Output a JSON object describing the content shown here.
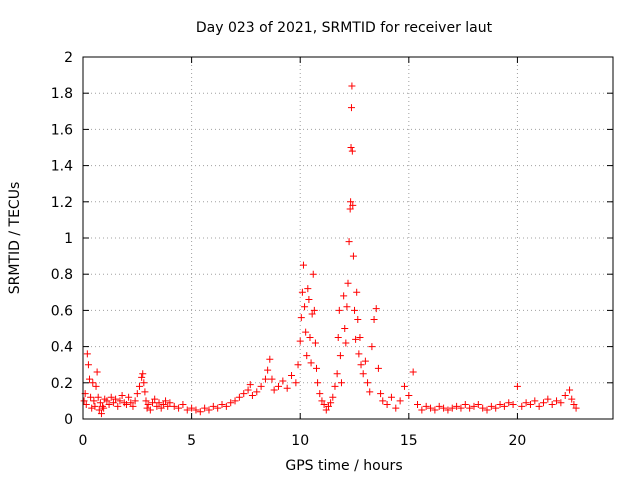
{
  "chart_data": {
    "type": "scatter",
    "title": "Day 023 of 2021, SRMTID for receiver laut",
    "xlabel": "GPS time / hours",
    "ylabel": "SRMTID / TECUs",
    "xlim": [
      0,
      24.4
    ],
    "ylim": [
      0,
      2
    ],
    "xticks": [
      "0",
      "5",
      "10",
      "15",
      "20"
    ],
    "yticks": [
      "0",
      "0.2",
      "0.4",
      "0.6",
      "0.8",
      "1",
      "1.2",
      "1.4",
      "1.6",
      "1.8",
      "2"
    ],
    "grid": true,
    "marker": "+",
    "color": "#ff0000",
    "series": [
      {
        "name": "SRMTID",
        "points": [
          [
            0.05,
            0.1
          ],
          [
            0.1,
            0.14
          ],
          [
            0.15,
            0.08
          ],
          [
            0.2,
            0.36
          ],
          [
            0.25,
            0.3
          ],
          [
            0.3,
            0.22
          ],
          [
            0.35,
            0.12
          ],
          [
            0.4,
            0.06
          ],
          [
            0.45,
            0.2
          ],
          [
            0.5,
            0.1
          ],
          [
            0.55,
            0.07
          ],
          [
            0.6,
            0.18
          ],
          [
            0.65,
            0.26
          ],
          [
            0.7,
            0.12
          ],
          [
            0.75,
            0.05
          ],
          [
            0.8,
            0.09
          ],
          [
            0.85,
            0.03
          ],
          [
            0.9,
            0.07
          ],
          [
            0.95,
            0.06
          ],
          [
            1.0,
            0.11
          ],
          [
            1.1,
            0.1
          ],
          [
            1.2,
            0.08
          ],
          [
            1.3,
            0.12
          ],
          [
            1.4,
            0.09
          ],
          [
            1.5,
            0.11
          ],
          [
            1.6,
            0.07
          ],
          [
            1.7,
            0.1
          ],
          [
            1.8,
            0.13
          ],
          [
            1.9,
            0.09
          ],
          [
            2.0,
            0.08
          ],
          [
            2.1,
            0.12
          ],
          [
            2.2,
            0.09
          ],
          [
            2.3,
            0.07
          ],
          [
            2.4,
            0.1
          ],
          [
            2.5,
            0.14
          ],
          [
            2.6,
            0.18
          ],
          [
            2.7,
            0.23
          ],
          [
            2.75,
            0.25
          ],
          [
            2.8,
            0.2
          ],
          [
            2.85,
            0.15
          ],
          [
            2.9,
            0.1
          ],
          [
            2.95,
            0.06
          ],
          [
            3.0,
            0.08
          ],
          [
            3.1,
            0.05
          ],
          [
            3.2,
            0.09
          ],
          [
            3.3,
            0.11
          ],
          [
            3.4,
            0.07
          ],
          [
            3.5,
            0.09
          ],
          [
            3.6,
            0.06
          ],
          [
            3.7,
            0.08
          ],
          [
            3.8,
            0.1
          ],
          [
            3.9,
            0.07
          ],
          [
            4.0,
            0.09
          ],
          [
            4.2,
            0.07
          ],
          [
            4.4,
            0.06
          ],
          [
            4.6,
            0.08
          ],
          [
            4.8,
            0.05
          ],
          [
            5.0,
            0.06
          ],
          [
            5.2,
            0.05
          ],
          [
            5.4,
            0.04
          ],
          [
            5.6,
            0.06
          ],
          [
            5.8,
            0.05
          ],
          [
            6.0,
            0.07
          ],
          [
            6.2,
            0.06
          ],
          [
            6.4,
            0.08
          ],
          [
            6.6,
            0.07
          ],
          [
            6.8,
            0.09
          ],
          [
            7.0,
            0.1
          ],
          [
            7.2,
            0.12
          ],
          [
            7.4,
            0.14
          ],
          [
            7.6,
            0.16
          ],
          [
            7.7,
            0.19
          ],
          [
            7.8,
            0.13
          ],
          [
            8.0,
            0.15
          ],
          [
            8.2,
            0.18
          ],
          [
            8.4,
            0.22
          ],
          [
            8.5,
            0.27
          ],
          [
            8.6,
            0.33
          ],
          [
            8.7,
            0.22
          ],
          [
            8.8,
            0.16
          ],
          [
            9.0,
            0.18
          ],
          [
            9.2,
            0.21
          ],
          [
            9.4,
            0.17
          ],
          [
            9.6,
            0.24
          ],
          [
            9.8,
            0.2
          ],
          [
            9.9,
            0.3
          ],
          [
            10.0,
            0.43
          ],
          [
            10.05,
            0.56
          ],
          [
            10.1,
            0.7
          ],
          [
            10.15,
            0.85
          ],
          [
            10.2,
            0.62
          ],
          [
            10.25,
            0.48
          ],
          [
            10.3,
            0.35
          ],
          [
            10.35,
            0.72
          ],
          [
            10.4,
            0.66
          ],
          [
            10.45,
            0.45
          ],
          [
            10.5,
            0.31
          ],
          [
            10.55,
            0.58
          ],
          [
            10.6,
            0.8
          ],
          [
            10.65,
            0.6
          ],
          [
            10.7,
            0.42
          ],
          [
            10.75,
            0.28
          ],
          [
            10.8,
            0.2
          ],
          [
            10.9,
            0.14
          ],
          [
            11.0,
            0.1
          ],
          [
            11.1,
            0.08
          ],
          [
            11.2,
            0.05
          ],
          [
            11.3,
            0.07
          ],
          [
            11.4,
            0.09
          ],
          [
            11.5,
            0.12
          ],
          [
            11.6,
            0.18
          ],
          [
            11.7,
            0.25
          ],
          [
            11.75,
            0.45
          ],
          [
            11.8,
            0.6
          ],
          [
            11.85,
            0.35
          ],
          [
            11.9,
            0.2
          ],
          [
            12.0,
            0.68
          ],
          [
            12.05,
            0.5
          ],
          [
            12.1,
            0.42
          ],
          [
            12.15,
            0.62
          ],
          [
            12.2,
            0.75
          ],
          [
            12.25,
            0.98
          ],
          [
            12.3,
            1.16
          ],
          [
            12.32,
            1.2
          ],
          [
            12.34,
            1.5
          ],
          [
            12.36,
            1.72
          ],
          [
            12.38,
            1.84
          ],
          [
            12.4,
            1.48
          ],
          [
            12.42,
            1.18
          ],
          [
            12.45,
            0.9
          ],
          [
            12.5,
            0.6
          ],
          [
            12.55,
            0.44
          ],
          [
            12.6,
            0.7
          ],
          [
            12.65,
            0.55
          ],
          [
            12.7,
            0.36
          ],
          [
            12.75,
            0.45
          ],
          [
            12.8,
            0.3
          ],
          [
            12.9,
            0.25
          ],
          [
            13.0,
            0.32
          ],
          [
            13.1,
            0.2
          ],
          [
            13.2,
            0.15
          ],
          [
            13.3,
            0.4
          ],
          [
            13.4,
            0.55
          ],
          [
            13.5,
            0.61
          ],
          [
            13.6,
            0.28
          ],
          [
            13.7,
            0.14
          ],
          [
            13.8,
            0.1
          ],
          [
            14.0,
            0.08
          ],
          [
            14.2,
            0.12
          ],
          [
            14.4,
            0.06
          ],
          [
            14.6,
            0.1
          ],
          [
            14.8,
            0.18
          ],
          [
            15.0,
            0.13
          ],
          [
            15.2,
            0.26
          ],
          [
            15.4,
            0.08
          ],
          [
            15.6,
            0.05
          ],
          [
            15.8,
            0.07
          ],
          [
            16.0,
            0.06
          ],
          [
            16.2,
            0.05
          ],
          [
            16.4,
            0.07
          ],
          [
            16.6,
            0.06
          ],
          [
            16.8,
            0.05
          ],
          [
            17.0,
            0.06
          ],
          [
            17.2,
            0.07
          ],
          [
            17.4,
            0.06
          ],
          [
            17.6,
            0.08
          ],
          [
            17.8,
            0.06
          ],
          [
            18.0,
            0.07
          ],
          [
            18.2,
            0.08
          ],
          [
            18.4,
            0.06
          ],
          [
            18.6,
            0.05
          ],
          [
            18.8,
            0.07
          ],
          [
            19.0,
            0.06
          ],
          [
            19.2,
            0.08
          ],
          [
            19.4,
            0.07
          ],
          [
            19.6,
            0.09
          ],
          [
            19.8,
            0.08
          ],
          [
            20.0,
            0.18
          ],
          [
            20.2,
            0.07
          ],
          [
            20.4,
            0.09
          ],
          [
            20.6,
            0.08
          ],
          [
            20.8,
            0.1
          ],
          [
            21.0,
            0.07
          ],
          [
            21.2,
            0.09
          ],
          [
            21.4,
            0.11
          ],
          [
            21.6,
            0.08
          ],
          [
            21.8,
            0.1
          ],
          [
            22.0,
            0.09
          ],
          [
            22.2,
            0.13
          ],
          [
            22.4,
            0.16
          ],
          [
            22.5,
            0.11
          ],
          [
            22.6,
            0.08
          ],
          [
            22.7,
            0.06
          ]
        ]
      }
    ]
  }
}
